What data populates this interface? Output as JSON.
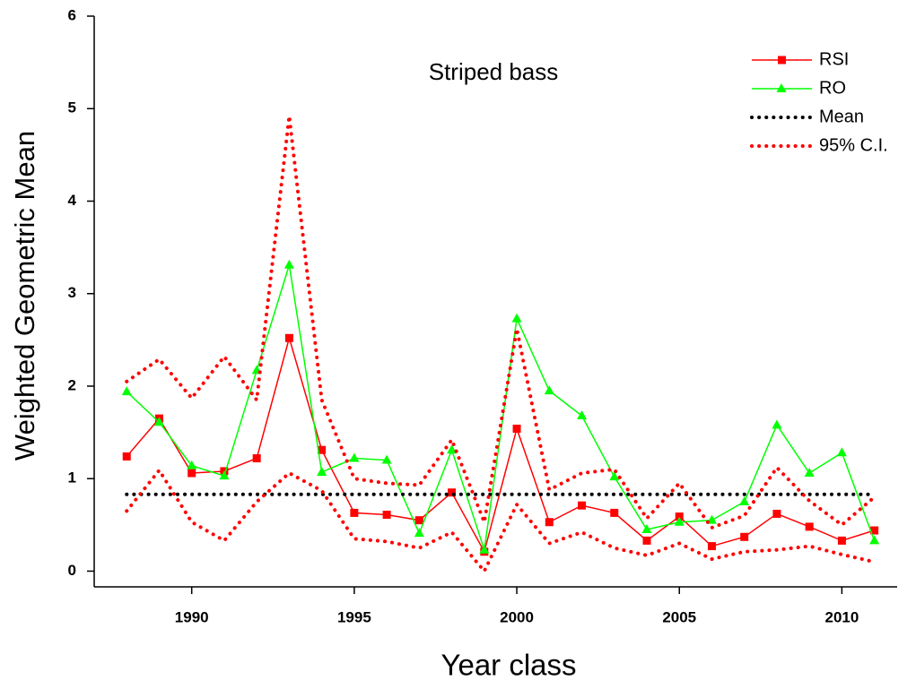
{
  "chart_data": {
    "type": "line",
    "annotation": "Striped bass",
    "xlabel": "Year class",
    "ylabel": "Weighted Geometric Mean",
    "x": [
      1988,
      1989,
      1990,
      1991,
      1992,
      1993,
      1994,
      1995,
      1996,
      1997,
      1998,
      1999,
      2000,
      2001,
      2002,
      2003,
      2004,
      2005,
      2006,
      2007,
      2008,
      2009,
      2010,
      2011
    ],
    "series": [
      {
        "name": "RSI",
        "color": "#ff0000",
        "marker": "square",
        "style": "solid",
        "values": [
          1.24,
          1.65,
          1.06,
          1.08,
          1.22,
          2.52,
          1.31,
          0.63,
          0.61,
          0.55,
          0.85,
          0.21,
          1.54,
          0.53,
          0.71,
          0.63,
          0.33,
          0.59,
          0.27,
          0.37,
          0.62,
          0.48,
          0.33,
          0.44
        ]
      },
      {
        "name": "RO",
        "color": "#00ff00",
        "marker": "triangle",
        "style": "solid",
        "values": [
          1.94,
          1.61,
          1.14,
          1.03,
          2.17,
          3.31,
          1.07,
          1.22,
          1.2,
          0.41,
          1.31,
          0.23,
          2.73,
          1.95,
          1.68,
          1.02,
          0.45,
          0.53,
          0.55,
          0.75,
          1.58,
          1.06,
          1.28,
          0.33
        ]
      },
      {
        "name": "Mean",
        "color": "#000000",
        "style": "dotted",
        "values": [
          0.83,
          0.83,
          0.83,
          0.83,
          0.83,
          0.83,
          0.83,
          0.83,
          0.83,
          0.83,
          0.83,
          0.83,
          0.83,
          0.83,
          0.83,
          0.83,
          0.83,
          0.83,
          0.83,
          0.83,
          0.83,
          0.83,
          0.83,
          0.83
        ]
      },
      {
        "name": "95% C.I.",
        "color": "#ff0000",
        "style": "dotted",
        "upper": [
          2.05,
          2.29,
          1.87,
          2.32,
          1.85,
          4.92,
          1.85,
          1.0,
          0.95,
          0.93,
          1.42,
          0.53,
          2.62,
          0.88,
          1.06,
          1.1,
          0.57,
          0.95,
          0.47,
          0.6,
          1.12,
          0.76,
          0.5,
          0.8
        ],
        "lower": [
          0.65,
          1.09,
          0.53,
          0.33,
          0.75,
          1.06,
          0.87,
          0.35,
          0.32,
          0.25,
          0.42,
          0.0,
          0.72,
          0.3,
          0.42,
          0.25,
          0.17,
          0.3,
          0.13,
          0.21,
          0.23,
          0.27,
          0.18,
          0.1
        ]
      }
    ],
    "xlim": [
      1987,
      2011.7
    ],
    "xticks": [
      1990,
      1995,
      2000,
      2005,
      2010
    ],
    "ylim": [
      -0.17,
      6
    ],
    "yticks": [
      0,
      1,
      2,
      3,
      4,
      5,
      6
    ],
    "legend": "upper right"
  }
}
